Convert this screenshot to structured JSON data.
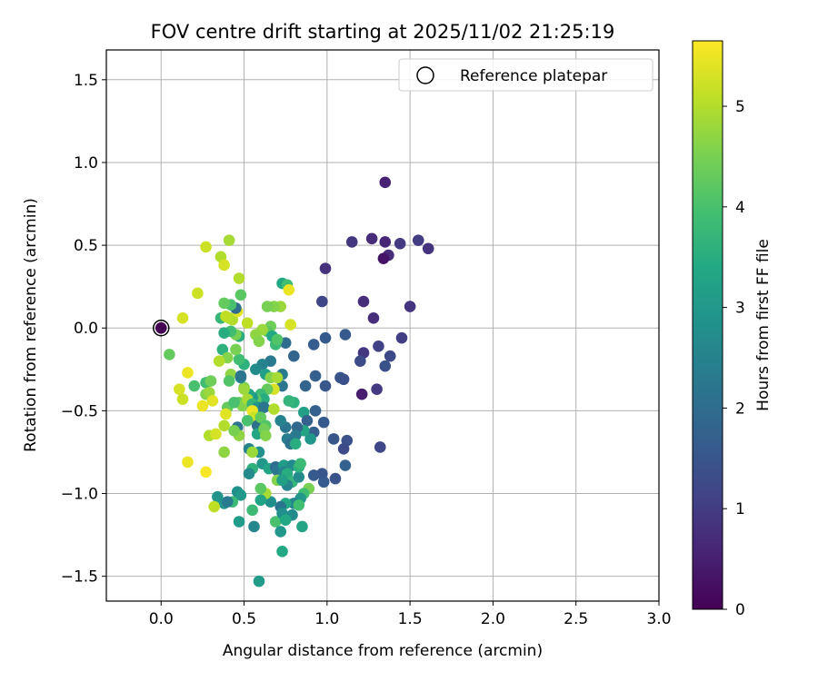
{
  "chart_data": {
    "type": "scatter",
    "title": "FOV centre drift starting at 2025/11/02 21:25:19",
    "xlabel": "Angular distance from reference (arcmin)",
    "ylabel": "Rotation from reference (arcmin)",
    "xlim": [
      -0.33,
      3.0
    ],
    "ylim": [
      -1.65,
      1.68
    ],
    "x_ticks": [
      0.0,
      0.5,
      1.0,
      1.5,
      2.0,
      2.5,
      3.0
    ],
    "x_tick_labels": [
      "0.0",
      "0.5",
      "1.0",
      "1.5",
      "2.0",
      "2.5",
      "3.0"
    ],
    "y_ticks": [
      -1.5,
      -1.0,
      -0.5,
      0.0,
      0.5,
      1.0,
      1.5
    ],
    "y_tick_labels": [
      "−1.5",
      "−1.0",
      "−0.5",
      "0.0",
      "0.5",
      "1.0",
      "1.5"
    ],
    "grid": true,
    "legend": {
      "label": "Reference platepar",
      "position": "top-right"
    },
    "reference_point": {
      "x": 0.0,
      "y": 0.0
    },
    "colorbar": {
      "label": "Hours from first FF file",
      "min": 0,
      "max": 5.65,
      "ticks": [
        0,
        1,
        2,
        3,
        4,
        5
      ],
      "tick_labels": [
        "0",
        "1",
        "2",
        "3",
        "4",
        "5"
      ],
      "colormap": "viridis"
    },
    "points": [
      [
        1.35,
        0.88,
        0.55
      ],
      [
        1.15,
        0.52,
        0.9
      ],
      [
        1.27,
        0.54,
        0.7
      ],
      [
        1.35,
        0.52,
        0.6
      ],
      [
        1.37,
        0.44,
        0.75
      ],
      [
        1.34,
        0.42,
        0.3
      ],
      [
        1.44,
        0.51,
        0.95
      ],
      [
        1.55,
        0.53,
        1.0
      ],
      [
        1.61,
        0.48,
        0.85
      ],
      [
        0.99,
        0.36,
        0.8
      ],
      [
        0.97,
        0.16,
        1.2
      ],
      [
        1.22,
        0.16,
        0.7
      ],
      [
        1.28,
        0.06,
        0.75
      ],
      [
        1.5,
        0.13,
        0.85
      ],
      [
        1.45,
        -0.06,
        1.05
      ],
      [
        1.31,
        -0.11,
        1.1
      ],
      [
        1.38,
        -0.17,
        1.25
      ],
      [
        1.35,
        -0.23,
        1.4
      ],
      [
        1.22,
        -0.15,
        0.9
      ],
      [
        1.2,
        -0.2,
        1.3
      ],
      [
        1.3,
        -0.37,
        0.95
      ],
      [
        1.21,
        -0.4,
        0.45
      ],
      [
        1.11,
        -0.04,
        1.6
      ],
      [
        0.99,
        -0.06,
        1.6
      ],
      [
        0.92,
        -0.1,
        1.65
      ],
      [
        1.08,
        -0.3,
        1.5
      ],
      [
        1.1,
        -0.31,
        1.4
      ],
      [
        0.93,
        -0.29,
        1.7
      ],
      [
        0.99,
        -0.35,
        1.55
      ],
      [
        0.87,
        -0.35,
        1.8
      ],
      [
        1.32,
        -0.72,
        1.2
      ],
      [
        1.12,
        -0.68,
        1.4
      ],
      [
        1.1,
        -0.73,
        1.3
      ],
      [
        1.04,
        -0.67,
        1.5
      ],
      [
        1.11,
        -0.83,
        1.75
      ],
      [
        1.05,
        -0.91,
        1.45
      ],
      [
        0.97,
        -0.88,
        1.5
      ],
      [
        0.98,
        -0.93,
        1.6
      ],
      [
        0.92,
        -0.89,
        1.6
      ],
      [
        0.98,
        -0.57,
        1.6
      ],
      [
        0.93,
        -0.5,
        1.7
      ],
      [
        0.86,
        -0.51,
        3.2
      ],
      [
        0.88,
        -0.56,
        1.75
      ],
      [
        0.92,
        -0.63,
        1.7
      ],
      [
        0.9,
        -0.67,
        2.95
      ],
      [
        0.86,
        -0.62,
        3.3
      ],
      [
        0.82,
        -0.6,
        1.9
      ],
      [
        0.81,
        -0.65,
        2.3
      ],
      [
        0.75,
        -0.6,
        2.2
      ],
      [
        0.72,
        -0.56,
        2.5
      ],
      [
        0.76,
        -0.67,
        2.4
      ],
      [
        0.78,
        -0.7,
        2.1
      ],
      [
        0.81,
        -0.7,
        3.5
      ],
      [
        0.8,
        -0.45,
        3.6
      ],
      [
        0.73,
        -0.35,
        2.2
      ],
      [
        0.73,
        -0.28,
        2.3
      ],
      [
        0.77,
        -0.44,
        3.7
      ],
      [
        0.8,
        -0.17,
        1.8
      ],
      [
        0.75,
        -0.09,
        2.0
      ],
      [
        0.73,
        0.27,
        3.4
      ],
      [
        0.76,
        0.26,
        3.9
      ],
      [
        0.77,
        0.23,
        5.5
      ],
      [
        0.78,
        0.02,
        5.3
      ],
      [
        0.72,
        0.13,
        4.8
      ],
      [
        0.68,
        0.13,
        4.6
      ],
      [
        0.64,
        0.13,
        4.5
      ],
      [
        0.66,
        0.01,
        4.4
      ],
      [
        0.64,
        -0.02,
        4.2
      ],
      [
        0.61,
        -0.01,
        4.8
      ],
      [
        0.67,
        -0.05,
        3.4
      ],
      [
        0.69,
        -0.1,
        3.8
      ],
      [
        0.7,
        -0.07,
        4.1
      ],
      [
        0.66,
        -0.2,
        2.3
      ],
      [
        0.61,
        -0.22,
        2.5
      ],
      [
        0.57,
        -0.25,
        2.7
      ],
      [
        0.63,
        -0.28,
        3.2
      ],
      [
        0.66,
        -0.3,
        4.6
      ],
      [
        0.7,
        -0.3,
        4.9
      ],
      [
        0.68,
        -0.37,
        5.3
      ],
      [
        0.64,
        -0.37,
        4.3
      ],
      [
        0.6,
        -0.4,
        3.8
      ],
      [
        0.62,
        -0.43,
        3.5
      ],
      [
        0.57,
        -0.43,
        4.2
      ],
      [
        0.55,
        -0.42,
        3.0
      ],
      [
        0.53,
        -0.4,
        3.3
      ],
      [
        0.5,
        -0.36,
        4.4
      ],
      [
        0.48,
        -0.3,
        2.6
      ],
      [
        0.5,
        -0.22,
        3.6
      ],
      [
        0.47,
        -0.19,
        3.9
      ],
      [
        0.45,
        -0.13,
        4.5
      ],
      [
        0.47,
        -0.05,
        3.5
      ],
      [
        0.45,
        -0.04,
        4.5
      ],
      [
        0.42,
        -0.02,
        3.9
      ],
      [
        0.41,
        0.06,
        4.8
      ],
      [
        0.43,
        0.05,
        5.0
      ],
      [
        0.46,
        0.1,
        5.4
      ],
      [
        0.48,
        0.2,
        4.2
      ],
      [
        0.45,
        0.12,
        2.0
      ],
      [
        0.42,
        0.14,
        4.0
      ],
      [
        0.38,
        0.15,
        4.3
      ],
      [
        0.36,
        0.06,
        3.7
      ],
      [
        0.39,
        0.07,
        5.1
      ],
      [
        0.38,
        -0.03,
        3.5
      ],
      [
        0.37,
        -0.13,
        3.6
      ],
      [
        0.4,
        -0.18,
        4.6
      ],
      [
        0.42,
        -0.28,
        4.7
      ],
      [
        0.48,
        -0.29,
        2.2
      ],
      [
        0.41,
        -0.32,
        4.1
      ],
      [
        0.5,
        -0.37,
        4.8
      ],
      [
        0.47,
        -0.45,
        4.3
      ],
      [
        0.49,
        -0.47,
        4.6
      ],
      [
        0.52,
        -0.43,
        4.9
      ],
      [
        0.55,
        -0.46,
        3.7
      ],
      [
        0.58,
        -0.48,
        2.9
      ],
      [
        0.62,
        -0.48,
        2.2
      ],
      [
        0.68,
        -0.49,
        5.0
      ],
      [
        0.55,
        -0.5,
        5.5
      ],
      [
        0.56,
        -0.54,
        5.2
      ],
      [
        0.58,
        -0.59,
        2.1
      ],
      [
        0.6,
        -0.54,
        4.3
      ],
      [
        0.63,
        -0.59,
        4.1
      ],
      [
        0.58,
        -0.64,
        3.3
      ],
      [
        0.62,
        -0.61,
        4.4
      ],
      [
        0.63,
        -0.65,
        4.6
      ],
      [
        0.46,
        -0.6,
        2.2
      ],
      [
        0.47,
        -0.65,
        4.7
      ],
      [
        0.44,
        -0.62,
        4.5
      ],
      [
        0.38,
        -0.59,
        5.0
      ],
      [
        0.4,
        -0.48,
        4.3
      ],
      [
        0.44,
        -0.45,
        4.0
      ],
      [
        0.39,
        -0.52,
        5.4
      ],
      [
        0.52,
        -0.56,
        4.0
      ],
      [
        0.53,
        -0.73,
        2.5
      ],
      [
        0.59,
        -0.75,
        2.8
      ],
      [
        0.55,
        -0.75,
        4.8
      ],
      [
        0.61,
        -0.82,
        3.0
      ],
      [
        0.65,
        -0.85,
        3.3
      ],
      [
        0.69,
        -0.84,
        2.0
      ],
      [
        0.7,
        -0.86,
        2.2
      ],
      [
        0.74,
        -0.83,
        3.1
      ],
      [
        0.74,
        -0.87,
        2.5
      ],
      [
        0.79,
        -0.83,
        2.7
      ],
      [
        0.76,
        -0.88,
        3.5
      ],
      [
        0.79,
        -0.93,
        3.7
      ],
      [
        0.83,
        -0.9,
        2.7
      ],
      [
        0.76,
        -0.95,
        2.6
      ],
      [
        0.7,
        -0.92,
        4.6
      ],
      [
        0.73,
        -0.92,
        3.2
      ],
      [
        0.83,
        -0.84,
        3.6
      ],
      [
        0.84,
        -0.82,
        3.8
      ],
      [
        0.89,
        -0.97,
        4.5
      ],
      [
        0.86,
        -1.0,
        3.9
      ],
      [
        0.84,
        -1.03,
        3.0
      ],
      [
        0.8,
        -1.06,
        2.6
      ],
      [
        0.83,
        -1.07,
        3.9
      ],
      [
        0.75,
        -1.06,
        3.4
      ],
      [
        0.72,
        -1.08,
        2.2
      ],
      [
        0.66,
        -1.05,
        2.8
      ],
      [
        0.63,
        -1.0,
        4.9
      ],
      [
        0.6,
        -0.97,
        4.2
      ],
      [
        0.6,
        -1.04,
        3.3
      ],
      [
        0.55,
        -0.85,
        3.6
      ],
      [
        0.53,
        -0.88,
        2.7
      ],
      [
        0.46,
        -0.99,
        2.8
      ],
      [
        0.48,
        -1.01,
        3.0
      ],
      [
        0.43,
        -1.05,
        3.8
      ],
      [
        0.38,
        -1.06,
        2.9
      ],
      [
        0.4,
        -1.05,
        2.3
      ],
      [
        0.34,
        -1.02,
        2.9
      ],
      [
        0.32,
        -1.08,
        5.1
      ],
      [
        0.55,
        -1.1,
        3.8
      ],
      [
        0.69,
        -1.17,
        4.0
      ],
      [
        0.73,
        -1.12,
        2.8
      ],
      [
        0.79,
        -1.13,
        2.7
      ],
      [
        0.85,
        -1.2,
        3.3
      ],
      [
        0.75,
        -1.16,
        3.4
      ],
      [
        0.72,
        -1.23,
        3.0
      ],
      [
        0.56,
        -1.2,
        2.6
      ],
      [
        0.47,
        -1.17,
        3.1
      ],
      [
        0.73,
        -1.35,
        3.4
      ],
      [
        0.59,
        -1.53,
        3.1
      ],
      [
        0.27,
        0.49,
        5.2
      ],
      [
        0.41,
        0.53,
        4.9
      ],
      [
        0.36,
        0.43,
        5.0
      ],
      [
        0.38,
        0.38,
        5.3
      ],
      [
        0.47,
        0.3,
        5.0
      ],
      [
        0.22,
        0.21,
        5.2
      ],
      [
        0.13,
        0.06,
        5.3
      ],
      [
        0.05,
        -0.16,
        4.3
      ],
      [
        0.16,
        -0.27,
        5.5
      ],
      [
        0.11,
        -0.37,
        5.3
      ],
      [
        0.13,
        -0.43,
        5.2
      ],
      [
        0.2,
        -0.35,
        4.0
      ],
      [
        0.27,
        -0.33,
        3.9
      ],
      [
        0.3,
        -0.32,
        4.4
      ],
      [
        0.27,
        -0.4,
        4.6
      ],
      [
        0.29,
        -0.39,
        4.8
      ],
      [
        0.25,
        -0.47,
        5.5
      ],
      [
        0.31,
        -0.44,
        5.4
      ],
      [
        0.29,
        -0.65,
        5.0
      ],
      [
        0.33,
        -0.64,
        5.3
      ],
      [
        0.38,
        -0.75,
        4.7
      ],
      [
        0.16,
        -0.81,
        5.5
      ],
      [
        0.27,
        -0.87,
        5.6
      ],
      [
        0.35,
        -0.2,
        5.0
      ],
      [
        0.52,
        0.03,
        5.1
      ],
      [
        0.57,
        -0.04,
        4.7
      ],
      [
        0.59,
        -0.08,
        4.6
      ]
    ]
  }
}
